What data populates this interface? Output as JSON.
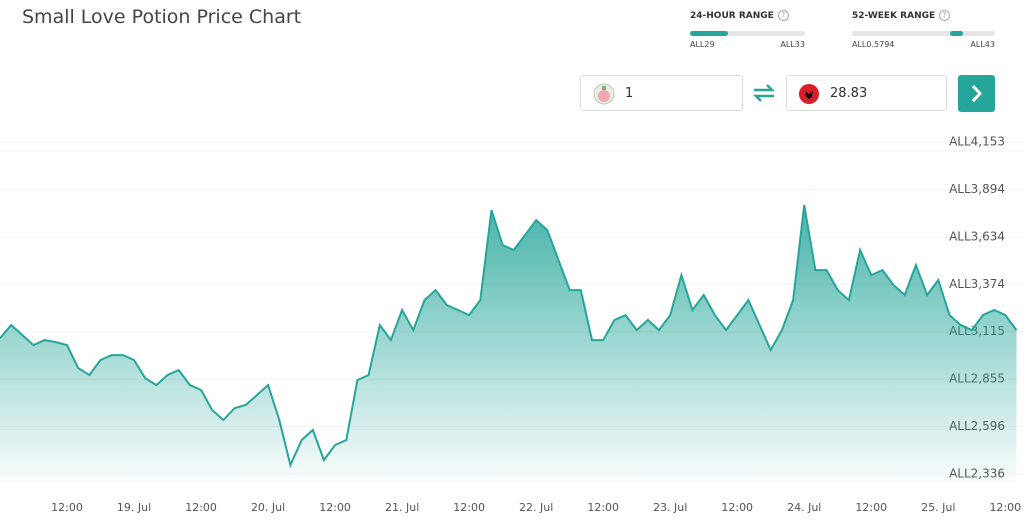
{
  "header": {
    "title": "Small Love Potion Price Chart"
  },
  "ranges": [
    {
      "label": "24-HOUR RANGE",
      "icon": "?",
      "low": "ALL29",
      "high": "ALL33"
    },
    {
      "label": "52-WEEK RANGE",
      "icon": "?",
      "low": "ALL0.5794",
      "high": "ALL43"
    }
  ],
  "converter": {
    "amount": "1",
    "converted": "28.83"
  },
  "chart_data": {
    "type": "area",
    "categories": [
      null,
      null,
      null,
      null,
      null,
      null,
      "12:00",
      null,
      null,
      null,
      null,
      null,
      "19. Jul",
      null,
      null,
      null,
      null,
      null,
      "12:00",
      null,
      null,
      null,
      null,
      null,
      "20. Jul",
      null,
      null,
      null,
      null,
      null,
      "12:00",
      null,
      null,
      null,
      null,
      null,
      "21. Jul",
      null,
      null,
      null,
      null,
      null,
      "12:00",
      null,
      null,
      null,
      null,
      null,
      "22. Jul",
      null,
      null,
      null,
      null,
      null,
      "12:00",
      null,
      null,
      null,
      null,
      null,
      "23. Jul",
      null,
      null,
      null,
      null,
      null,
      "12:00",
      null,
      null,
      null,
      null,
      null,
      "24. Jul",
      null,
      null,
      null,
      null,
      null,
      "12:00",
      null,
      null,
      null,
      null,
      null,
      "25. Jul",
      null,
      null,
      null,
      null,
      null,
      "12:00",
      null
    ],
    "values": [
      3080,
      3151,
      3097,
      3042,
      3069,
      3058,
      3042,
      2916,
      2878,
      2960,
      2987,
      2987,
      2960,
      2861,
      2823,
      2878,
      2905,
      2823,
      2796,
      2686,
      2632,
      2697,
      2714,
      2768,
      2823,
      2632,
      2385,
      2522,
      2577,
      2413,
      2495,
      2522,
      2850,
      2878,
      3151,
      3069,
      3234,
      3124,
      3288,
      3343,
      3261,
      3234,
      3206,
      3288,
      3781,
      3589,
      3562,
      3644,
      3726,
      3671,
      3507,
      3343,
      3343,
      3069,
      3069,
      3179,
      3206,
      3124,
      3179,
      3124,
      3206,
      3425,
      3234,
      3316,
      3206,
      3124,
      3206,
      3288,
      3151,
      3015,
      3124,
      3288,
      3808,
      3452,
      3452,
      3343,
      3288,
      3562,
      3425,
      3452,
      3370,
      3316,
      3480,
      3316,
      3398,
      3206,
      3151,
      3124,
      3206,
      3234,
      3206,
      3124
    ],
    "color": "#26a69a",
    "ylim": [
      2287,
      4219
    ],
    "yticks": [
      {
        "value": 4153,
        "label": "ALL4,153"
      },
      {
        "value": 3894,
        "label": "ALL3,894"
      },
      {
        "value": 3634,
        "label": "ALL3,634"
      },
      {
        "value": 3374,
        "label": "ALL3,374"
      },
      {
        "value": 3115,
        "label": "ALL3,115"
      },
      {
        "value": 2855,
        "label": "ALL2,855"
      },
      {
        "value": 2596,
        "label": "ALL2,596"
      },
      {
        "value": 2336,
        "label": "ALL2,336"
      }
    ],
    "grid": true
  }
}
